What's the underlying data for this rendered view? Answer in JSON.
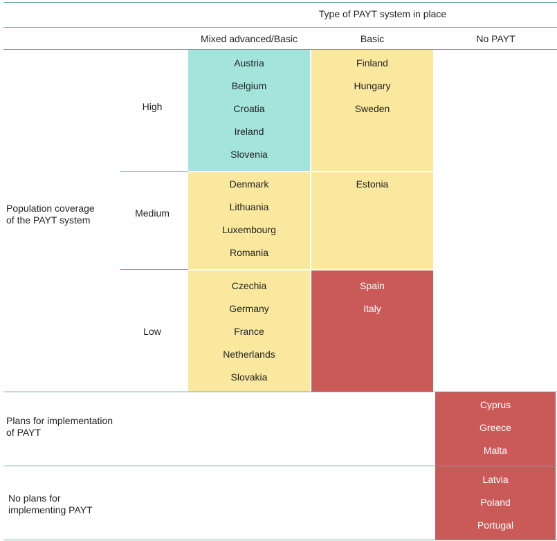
{
  "header": {
    "super_title": "Type of PAYT system in place",
    "columns": [
      "Mixed advanced/Basic",
      "Basic",
      "No PAYT"
    ]
  },
  "row_groups": {
    "population_coverage": "Population coverage\nof the PAYT system",
    "plans": "Plans for implementation\nof PAYT",
    "no_plans": "No plans for\nimplementing PAYT"
  },
  "coverage_levels": [
    "High",
    "Medium",
    "Low"
  ],
  "cells": {
    "high_mixed": [
      "Austria",
      "Belgium",
      "Croatia",
      "Ireland",
      "Slovenia"
    ],
    "high_basic": [
      "Finland",
      "Hungary",
      "Sweden"
    ],
    "medium_mixed": [
      "Denmark",
      "Lithuania",
      "Luxembourg",
      "Romania"
    ],
    "medium_basic": [
      "Estonia"
    ],
    "low_mixed": [
      "Czechia",
      "Germany",
      "France",
      "Netherlands",
      "Slovakia"
    ],
    "low_basic": [
      "Spain",
      "Italy"
    ],
    "plans_nopayt": [
      "Cyprus",
      "Greece",
      "Malta"
    ],
    "noplans_nopayt": [
      "Latvia",
      "Poland",
      "Portugal"
    ]
  },
  "colors": {
    "teal": "#a3e4dc",
    "yellow": "#f9e89e",
    "red": "#c95a58",
    "rule": "#6aa9a0"
  }
}
